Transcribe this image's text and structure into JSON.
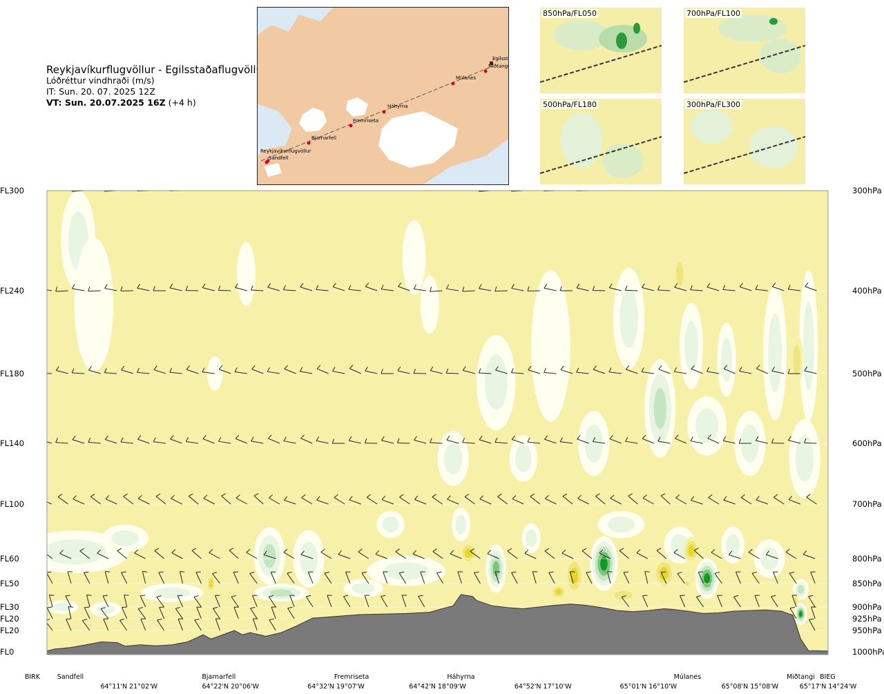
{
  "header": {
    "route": "Reykjavíkurflugvöllur - Egilsstaðaflugvöllur",
    "field": "Lóðréttur vindhraði (m/s)",
    "init": "IT: Sun. 20. 07. 2025 12Z",
    "valid_main": "VT: Sun. 20.07.2025 16Z",
    "valid_offset": "(+4 h)"
  },
  "map": {
    "points": [
      "Reykjavíkurflugvöllur",
      "Sandfell",
      "Bjarnarfell",
      "Fremriseta",
      "Háhyrna",
      "Múlanes",
      "Miðtangi",
      "Egilsst"
    ],
    "colors": {
      "land": "#f1c9a3",
      "sea": "#dbe9f4",
      "glacier": "#ffffff",
      "route": "#555555",
      "point": "#e0001b"
    }
  },
  "minimaps": [
    {
      "label": "850hPa/FL050"
    },
    {
      "label": "700hPa/FL100"
    },
    {
      "label": "500hPa/FL180"
    },
    {
      "label": "300hPa/FL300"
    }
  ],
  "chart_data": {
    "type": "heatmap",
    "variable": "vertical wind speed (m/s)",
    "y_levels": [
      {
        "fl": "FL300",
        "hpa": "300hPa",
        "ft": 30000
      },
      {
        "fl": "FL240",
        "hpa": "400hPa",
        "ft": 24000
      },
      {
        "fl": "FL180",
        "hpa": "500hPa",
        "ft": 18000
      },
      {
        "fl": "FL140",
        "hpa": "600hPa",
        "ft": 14000
      },
      {
        "fl": "FL100",
        "hpa": "700hPa",
        "ft": 10000
      },
      {
        "fl": "FL60",
        "hpa": "800hPa",
        "ft": 6000
      },
      {
        "fl": "FL50",
        "hpa": "850hPa",
        "ft": 5000
      },
      {
        "fl": "FL30",
        "hpa": "900hPa",
        "ft": 3000
      },
      {
        "fl": "FL20",
        "hpa": "925hPa",
        "ft": 2000
      },
      {
        "fl": "FL20",
        "hpa": "950hPa",
        "ft": 1500
      },
      {
        "fl": "FL0",
        "hpa": "1000hPa",
        "ft": 0
      }
    ],
    "waypoints": [
      {
        "name": "BIRK",
        "pos": 0.0
      },
      {
        "name": "Sandfell",
        "pos": 0.03
      },
      {
        "name": "Bjarnarfell",
        "pos": 0.22
      },
      {
        "name": "Fremriseta",
        "pos": 0.39
      },
      {
        "name": "Háhyrna",
        "pos": 0.53
      },
      {
        "name": "Múlanes",
        "pos": 0.82
      },
      {
        "name": "Miðtangi",
        "pos": 0.965
      },
      {
        "name": "BIEG",
        "pos": 1.0
      }
    ],
    "coordinates": [
      {
        "text": "64°11'N 21°02'W",
        "pos": 0.105
      },
      {
        "text": "64°22'N 20°06'W",
        "pos": 0.235
      },
      {
        "text": "64°32'N 19°07'W",
        "pos": 0.37
      },
      {
        "text": "64°42'N 18°09'W",
        "pos": 0.5
      },
      {
        "text": "64°52'N 17°10'W",
        "pos": 0.635
      },
      {
        "text": "65°01'N 16°10'W",
        "pos": 0.77
      },
      {
        "text": "65°08'N 15°08'W",
        "pos": 0.9
      },
      {
        "text": "65°17'N 14°24'W",
        "pos": 1.0
      }
    ],
    "terrain_ft": [
      [
        0.0,
        60
      ],
      [
        0.01,
        200
      ],
      [
        0.03,
        300
      ],
      [
        0.05,
        500
      ],
      [
        0.07,
        700
      ],
      [
        0.09,
        650
      ],
      [
        0.1,
        400
      ],
      [
        0.12,
        500
      ],
      [
        0.14,
        420
      ],
      [
        0.16,
        500
      ],
      [
        0.18,
        700
      ],
      [
        0.19,
        950
      ],
      [
        0.2,
        1200
      ],
      [
        0.21,
        900
      ],
      [
        0.22,
        1100
      ],
      [
        0.23,
        1300
      ],
      [
        0.24,
        1500
      ],
      [
        0.25,
        1200
      ],
      [
        0.26,
        1350
      ],
      [
        0.28,
        1100
      ],
      [
        0.3,
        1350
      ],
      [
        0.32,
        1700
      ],
      [
        0.34,
        2050
      ],
      [
        0.36,
        2150
      ],
      [
        0.38,
        2250
      ],
      [
        0.4,
        2350
      ],
      [
        0.43,
        2400
      ],
      [
        0.46,
        2450
      ],
      [
        0.49,
        2550
      ],
      [
        0.5,
        2750
      ],
      [
        0.52,
        3100
      ],
      [
        0.53,
        4050
      ],
      [
        0.545,
        3900
      ],
      [
        0.55,
        3550
      ],
      [
        0.57,
        3100
      ],
      [
        0.59,
        2950
      ],
      [
        0.61,
        2850
      ],
      [
        0.63,
        3000
      ],
      [
        0.65,
        3150
      ],
      [
        0.67,
        3250
      ],
      [
        0.69,
        3150
      ],
      [
        0.71,
        2950
      ],
      [
        0.73,
        2700
      ],
      [
        0.75,
        2600
      ],
      [
        0.77,
        2700
      ],
      [
        0.79,
        2850
      ],
      [
        0.8,
        2800
      ],
      [
        0.82,
        2650
      ],
      [
        0.84,
        2450
      ],
      [
        0.86,
        2500
      ],
      [
        0.88,
        2650
      ],
      [
        0.9,
        2700
      ],
      [
        0.92,
        2750
      ],
      [
        0.94,
        2650
      ],
      [
        0.955,
        2300
      ],
      [
        0.965,
        900
      ],
      [
        0.975,
        80
      ],
      [
        1.0,
        60
      ]
    ],
    "contour_levels": [
      {
        "min": -2.0,
        "max": -1.0,
        "color": "#e6d728"
      },
      {
        "min": -1.0,
        "max": -0.5,
        "color": "#efe57e"
      },
      {
        "min": -0.5,
        "max": 0.0,
        "color": "#f6f0a9"
      },
      {
        "min": 0.0,
        "max": 0.25,
        "color": "#fffff0"
      },
      {
        "min": 0.25,
        "max": 0.5,
        "color": "#e8f5e3"
      },
      {
        "min": 0.5,
        "max": 1.0,
        "color": "#c5e4c0"
      },
      {
        "min": 1.0,
        "max": 2.0,
        "color": "#7cc67c"
      },
      {
        "min": 2.0,
        "max": 4.0,
        "color": "#109a25"
      }
    ],
    "cells": [
      {
        "pos": 0.04,
        "ft": 27000,
        "w": 0.022,
        "h": 6000,
        "v": 0.3
      },
      {
        "pos": 0.06,
        "ft": 23000,
        "w": 0.025,
        "h": 9000,
        "v": 0.12
      },
      {
        "pos": 0.255,
        "ft": 25000,
        "w": 0.012,
        "h": 4000,
        "v": 0.1
      },
      {
        "pos": 0.215,
        "ft": 18000,
        "w": 0.01,
        "h": 2200,
        "v": 0.1
      },
      {
        "pos": 0.47,
        "ft": 26000,
        "w": 0.015,
        "h": 4500,
        "v": 0.15
      },
      {
        "pos": 0.49,
        "ft": 23000,
        "w": 0.012,
        "h": 4000,
        "v": 0.12
      },
      {
        "pos": 0.52,
        "ft": 13000,
        "w": 0.02,
        "h": 3500,
        "v": 0.4
      },
      {
        "pos": 0.575,
        "ft": 17500,
        "w": 0.025,
        "h": 6000,
        "v": 0.3
      },
      {
        "pos": 0.61,
        "ft": 13000,
        "w": 0.018,
        "h": 3000,
        "v": 0.35
      },
      {
        "pos": 0.645,
        "ft": 20000,
        "w": 0.025,
        "h": 10000,
        "v": 0.2
      },
      {
        "pos": 0.7,
        "ft": 14000,
        "w": 0.02,
        "h": 4000,
        "v": 0.45
      },
      {
        "pos": 0.745,
        "ft": 22000,
        "w": 0.02,
        "h": 7000,
        "v": 0.3
      },
      {
        "pos": 0.785,
        "ft": 16000,
        "w": 0.02,
        "h": 6000,
        "v": 0.55
      },
      {
        "pos": 0.825,
        "ft": 20000,
        "w": 0.015,
        "h": 6000,
        "v": 0.4
      },
      {
        "pos": 0.845,
        "ft": 15000,
        "w": 0.025,
        "h": 3500,
        "v": 0.5
      },
      {
        "pos": 0.87,
        "ft": 19000,
        "w": 0.012,
        "h": 5000,
        "v": 0.35
      },
      {
        "pos": 0.9,
        "ft": 14000,
        "w": 0.02,
        "h": 4000,
        "v": 0.45
      },
      {
        "pos": 0.932,
        "ft": 19500,
        "w": 0.015,
        "h": 9000,
        "v": 0.35
      },
      {
        "pos": 0.975,
        "ft": 20000,
        "w": 0.012,
        "h": 10000,
        "v": 0.4
      },
      {
        "pos": 0.97,
        "ft": 13000,
        "w": 0.02,
        "h": 5000,
        "v": 0.3
      },
      {
        "pos": 0.81,
        "ft": 25000,
        "w": 0.008,
        "h": 2500,
        "v": -0.7
      },
      {
        "pos": 0.96,
        "ft": 19000,
        "w": 0.008,
        "h": 3500,
        "v": -0.7
      },
      {
        "pos": 0.035,
        "ft": 6500,
        "w": 0.07,
        "h": 2500,
        "v": 0.5
      },
      {
        "pos": 0.1,
        "ft": 7500,
        "w": 0.03,
        "h": 2000,
        "v": 0.45
      },
      {
        "pos": 0.16,
        "ft": 4200,
        "w": 0.04,
        "h": 1600,
        "v": 0.4
      },
      {
        "pos": 0.285,
        "ft": 6200,
        "w": 0.02,
        "h": 3500,
        "v": 0.55
      },
      {
        "pos": 0.3,
        "ft": 4200,
        "w": 0.035,
        "h": 1500,
        "v": 0.55
      },
      {
        "pos": 0.335,
        "ft": 6000,
        "w": 0.02,
        "h": 3500,
        "v": 0.5
      },
      {
        "pos": 0.405,
        "ft": 4600,
        "w": 0.025,
        "h": 1300,
        "v": 0.5
      },
      {
        "pos": 0.46,
        "ft": 5500,
        "w": 0.05,
        "h": 1400,
        "v": 0.45
      },
      {
        "pos": 0.53,
        "ft": 8500,
        "w": 0.012,
        "h": 2500,
        "v": 0.4
      },
      {
        "pos": 0.575,
        "ft": 5600,
        "w": 0.013,
        "h": 2800,
        "v": 1.2
      },
      {
        "pos": 0.62,
        "ft": 7500,
        "w": 0.012,
        "h": 2200,
        "v": 0.5
      },
      {
        "pos": 0.713,
        "ft": 5800,
        "w": 0.018,
        "h": 3300,
        "v": 2.5
      },
      {
        "pos": 0.735,
        "ft": 8500,
        "w": 0.03,
        "h": 2000,
        "v": 0.4
      },
      {
        "pos": 0.81,
        "ft": 7000,
        "w": 0.02,
        "h": 2500,
        "v": 0.5
      },
      {
        "pos": 0.845,
        "ft": 5200,
        "w": 0.015,
        "h": 2300,
        "v": 2.2
      },
      {
        "pos": 0.878,
        "ft": 7000,
        "w": 0.015,
        "h": 2500,
        "v": 0.5
      },
      {
        "pos": 0.925,
        "ft": 6000,
        "w": 0.02,
        "h": 2000,
        "v": 0.3
      },
      {
        "pos": 0.965,
        "ft": 2400,
        "w": 0.008,
        "h": 1500,
        "v": 2.5
      },
      {
        "pos": 0.965,
        "ft": 4500,
        "w": 0.01,
        "h": 1500,
        "v": 0.8
      },
      {
        "pos": 0.02,
        "ft": 3000,
        "w": 0.02,
        "h": 1200,
        "v": 0.4
      },
      {
        "pos": 0.075,
        "ft": 2800,
        "w": 0.02,
        "h": 1300,
        "v": 0.35
      },
      {
        "pos": 0.44,
        "ft": 8500,
        "w": 0.018,
        "h": 2000,
        "v": 0.35
      },
      {
        "pos": 0.54,
        "ft": 6400,
        "w": 0.012,
        "h": 1400,
        "v": -1.3
      },
      {
        "pos": 0.675,
        "ft": 5300,
        "w": 0.012,
        "h": 2200,
        "v": -1.3
      },
      {
        "pos": 0.79,
        "ft": 5400,
        "w": 0.014,
        "h": 1600,
        "v": -1.3
      },
      {
        "pos": 0.825,
        "ft": 6600,
        "w": 0.01,
        "h": 1800,
        "v": -1.4
      },
      {
        "pos": 0.82,
        "ft": 5000,
        "w": 0.004,
        "h": 300,
        "v": -2.5
      },
      {
        "pos": 0.21,
        "ft": 5000,
        "w": 0.006,
        "h": 1000,
        "v": -1.2
      },
      {
        "pos": 0.655,
        "ft": 4300,
        "w": 0.01,
        "h": 1200,
        "v": -1.1
      },
      {
        "pos": 0.738,
        "ft": 4000,
        "w": 0.02,
        "h": 1200,
        "v": -1.0
      },
      {
        "pos": 0.958,
        "ft": 3500,
        "w": 0.004,
        "h": 1200,
        "v": -1.0
      }
    ]
  }
}
